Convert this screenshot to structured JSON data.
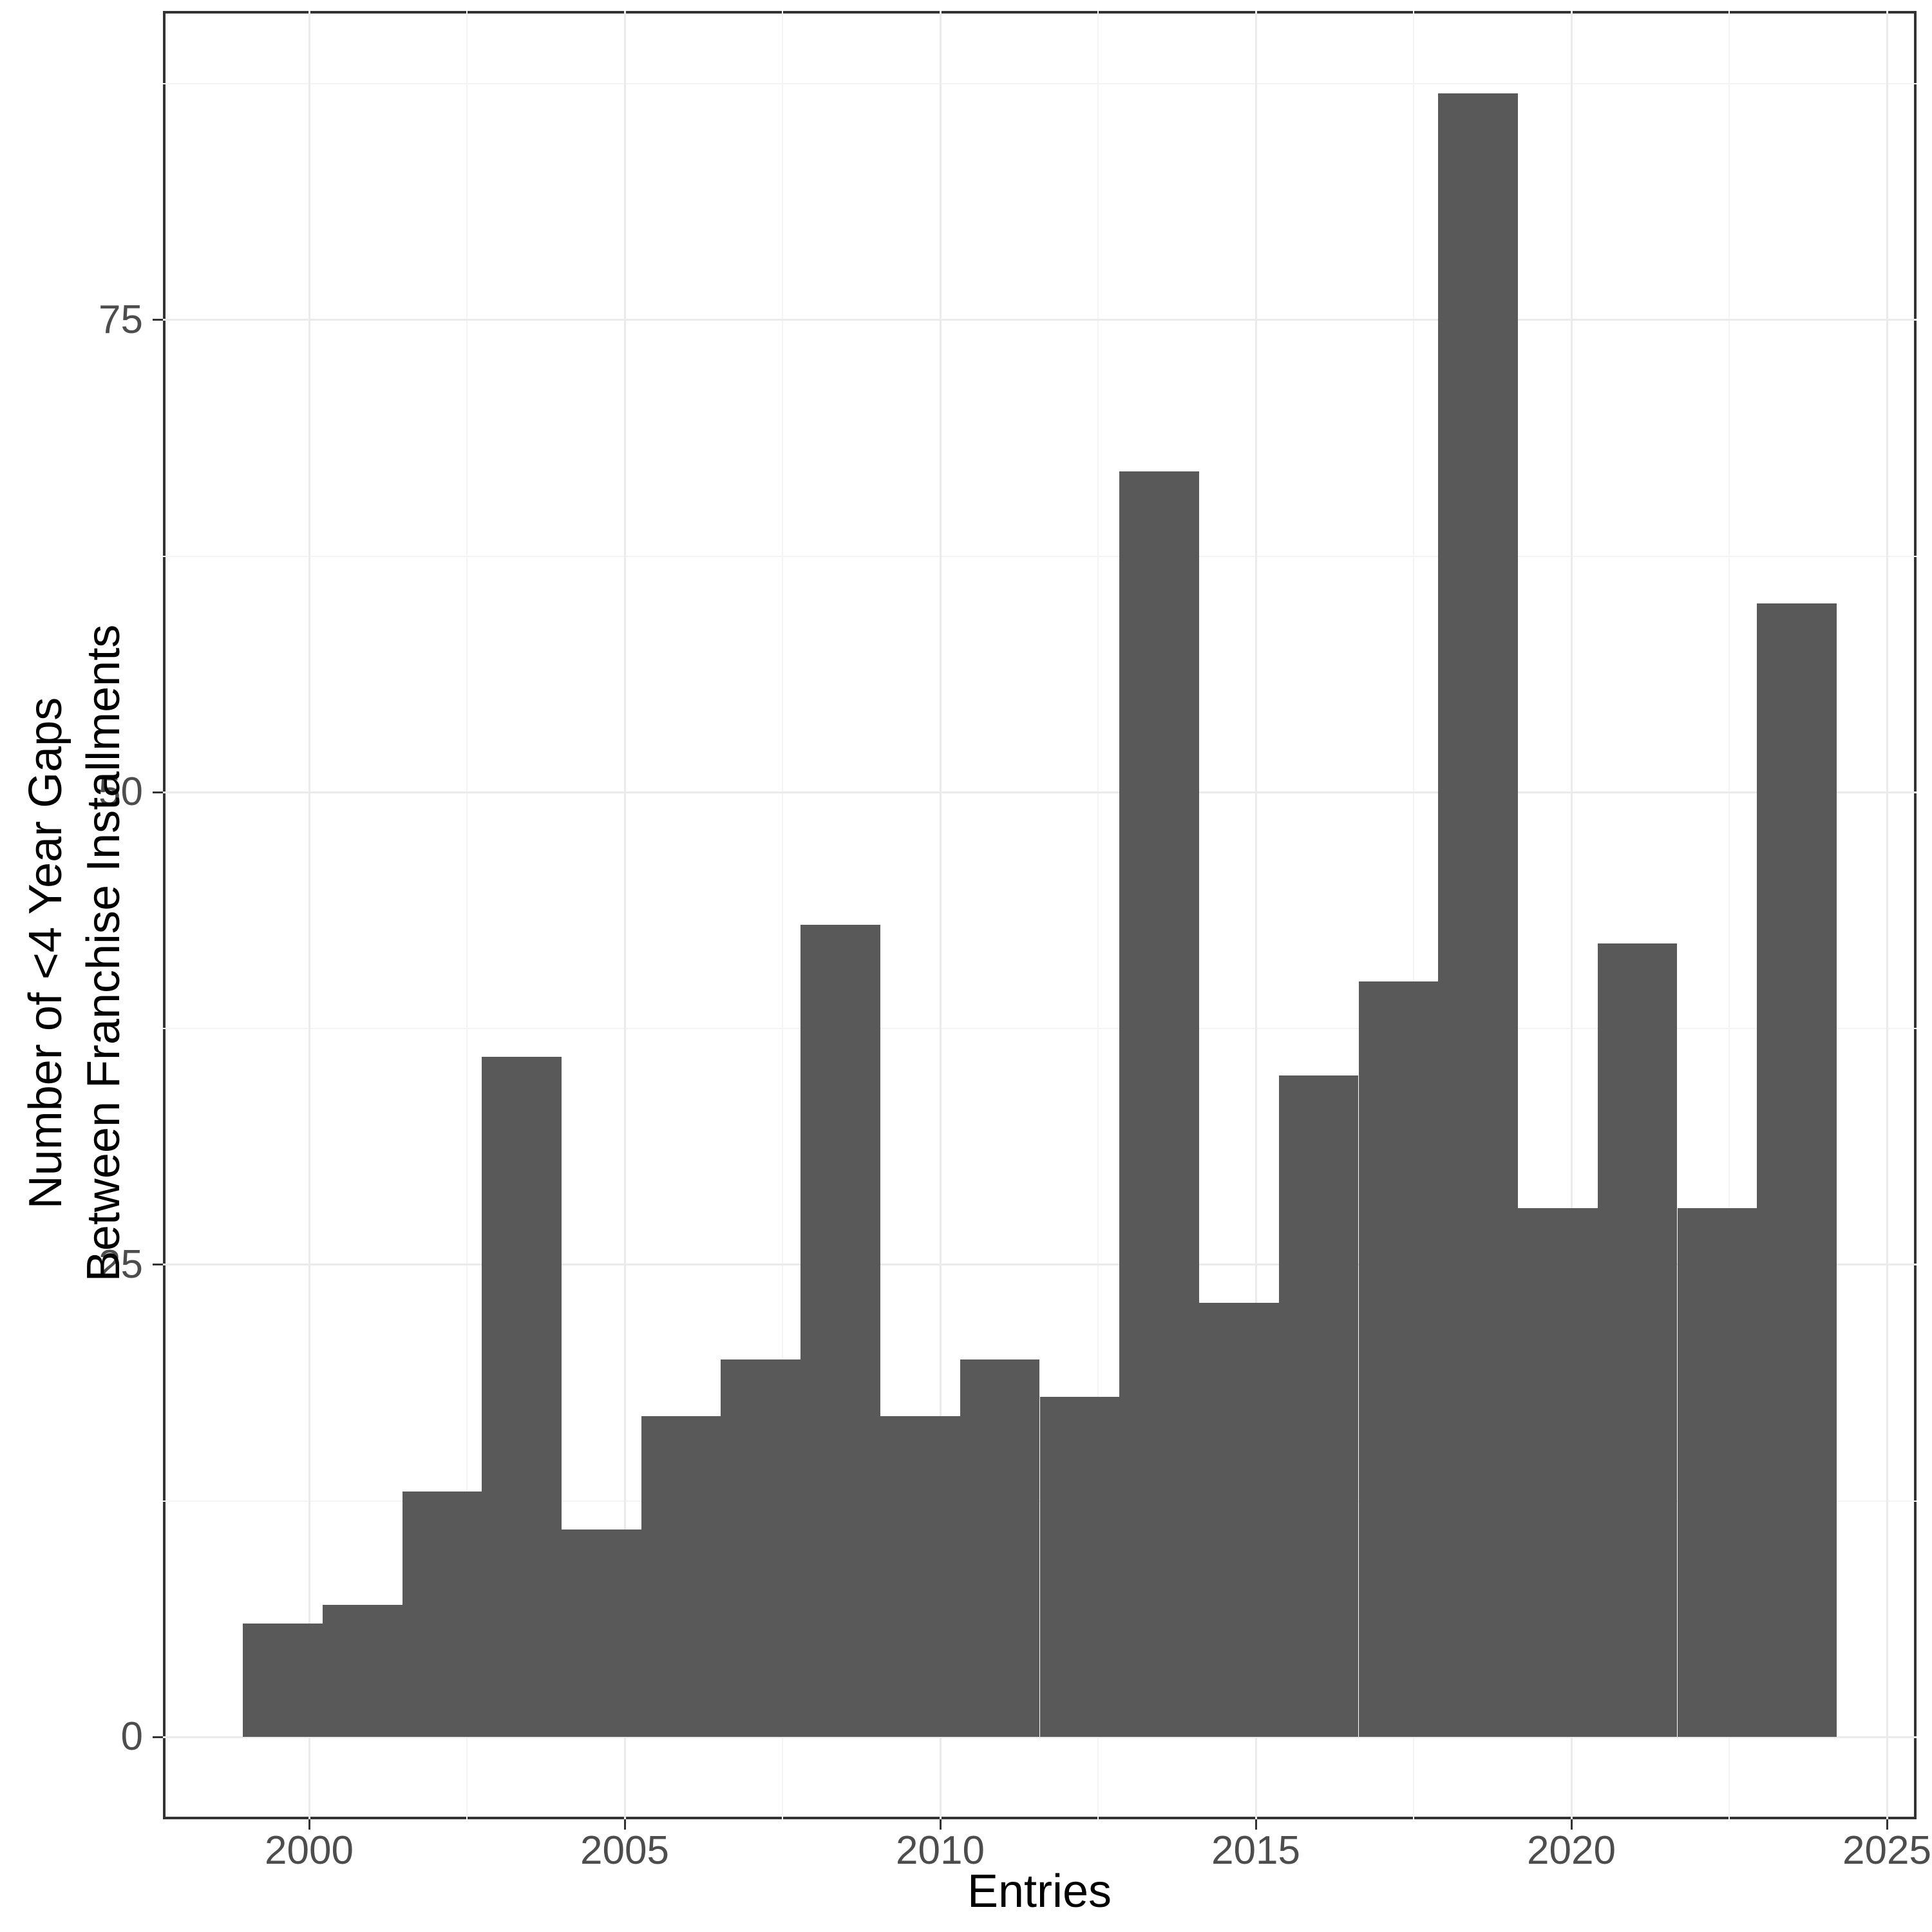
{
  "axis_titles": {
    "x": "Entries",
    "y_line1": "Number of <4 Year Gaps",
    "y_line2": "Between Franchise Installments"
  },
  "colors": {
    "bar_fill": "#595959",
    "grid_major": "#EBEBEB",
    "grid_minor": "#F4F4F4",
    "axis_text": "#4D4D4D",
    "axis_title": "#000000",
    "panel_border": "#333333",
    "background": "#FFFFFF"
  },
  "chart_data": {
    "type": "bar",
    "subtype": "histogram",
    "title": "",
    "xlabel": "Entries",
    "ylabel": "Number of <4 Year Gaps Between Franchise Installments",
    "legend": "none",
    "grid": "on",
    "x_domain": [
      1997.684,
      2025.469
    ],
    "y_domain": [
      -4.35,
      91.35
    ],
    "bin_edges": [
      1998.949,
      2000.212,
      2001.475,
      2002.737,
      2004.0,
      2005.263,
      2006.525,
      2007.788,
      2009.051,
      2010.314,
      2011.576,
      2012.839,
      2014.102,
      2015.365,
      2016.627,
      2017.89,
      2019.153,
      2020.416,
      2021.678,
      2022.941,
      2024.204
    ],
    "values": [
      6,
      7,
      13,
      36,
      11,
      17,
      20,
      43,
      17,
      20,
      18,
      67,
      23,
      35,
      40,
      87,
      28,
      42,
      28,
      60
    ],
    "x_ticks": [
      2000,
      2005,
      2010,
      2015,
      2020,
      2025
    ],
    "x_tick_labels": [
      "2000",
      "2005",
      "2010",
      "2015",
      "2020",
      "2025"
    ],
    "x_minor_ticks": [
      2002.5,
      2007.5,
      2012.5,
      2017.5,
      2022.5
    ],
    "y_ticks": [
      0,
      25,
      50,
      75
    ],
    "y_tick_labels": [
      "0",
      "25",
      "50",
      "75"
    ],
    "y_minor_ticks": [
      12.5,
      37.5,
      62.5,
      87.5
    ]
  }
}
